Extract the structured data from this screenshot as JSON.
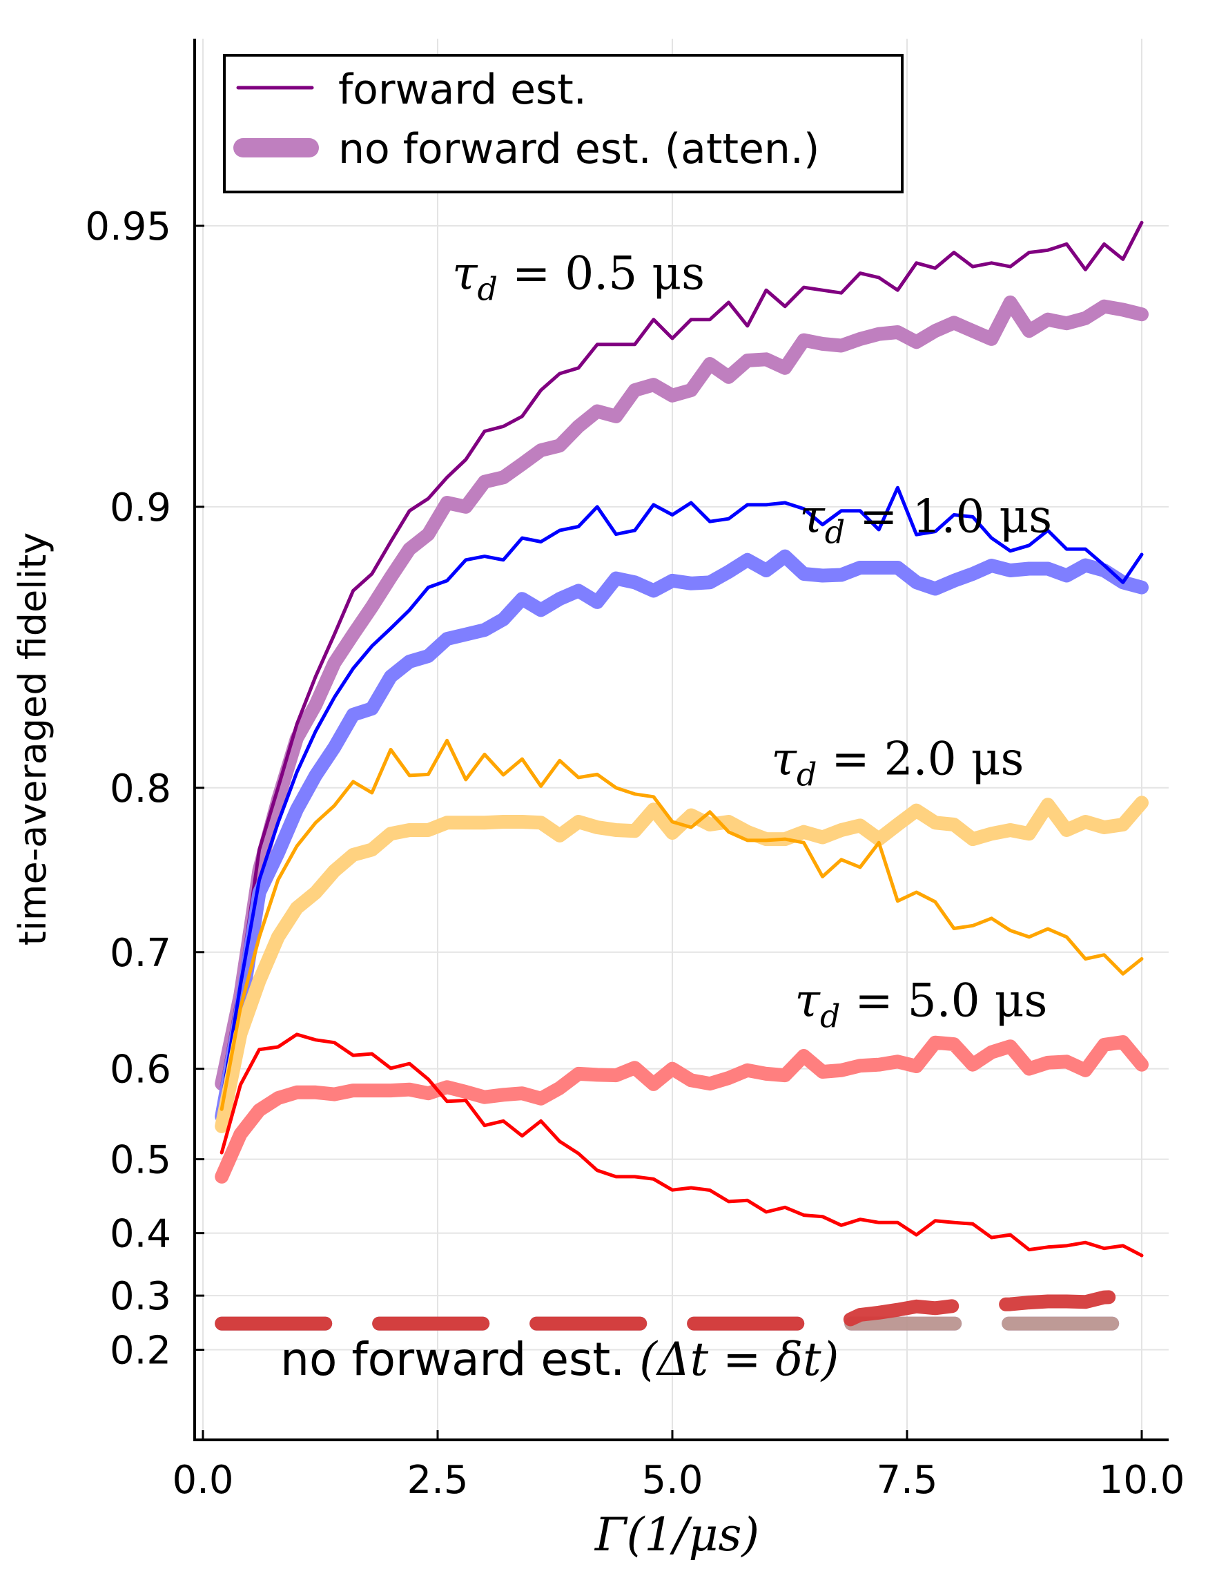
{
  "chart_data": {
    "type": "line",
    "title": "",
    "xlabel": "Γ(1/μs)",
    "ylabel": "time-averaged fidelity",
    "xlim": [
      -0.1,
      10.3
    ],
    "ylim": [
      0.0,
      0.9685
    ],
    "yscale": "log(1-F) (fidelity axis compressed toward 1)",
    "x_ticks": [
      0.0,
      2.5,
      5.0,
      7.5,
      10.0
    ],
    "x_tick_labels": [
      "0.0",
      "2.5",
      "5.0",
      "7.5",
      "10.0"
    ],
    "y_ticks": [
      0.2,
      0.3,
      0.4,
      0.5,
      0.6,
      0.7,
      0.8,
      0.9,
      0.95
    ],
    "y_tick_labels": [
      "0.2",
      "0.3",
      "0.4",
      "0.5",
      "0.6",
      "0.7",
      "0.8",
      "0.9",
      "0.95"
    ],
    "grid": true,
    "legend": {
      "placement": "top-left",
      "entries": [
        {
          "label": "forward est.",
          "color": "#800080",
          "style": "thin"
        },
        {
          "label": "no forward est. (atten.)",
          "color": "#bf7fbf",
          "style": "thick"
        }
      ]
    },
    "annotations": [
      {
        "text_main": "τ",
        "text_sub": "d",
        "text_rest": " = 0.5 μs",
        "x": 4.0,
        "y": 0.9437
      },
      {
        "text_main": "τ",
        "text_sub": "d",
        "text_rest": " = 1.0 μs",
        "x": 7.7,
        "y": 0.8975
      },
      {
        "text_main": "τ",
        "text_sub": "d",
        "text_rest": " = 2.0 μs",
        "x": 7.4,
        "y": 0.8135
      },
      {
        "text_main": "τ",
        "text_sub": "d",
        "text_rest": " = 5.0 μs",
        "x": 7.65,
        "y": 0.6615
      },
      {
        "text_main": "no forward est. ",
        "text_sub": "",
        "text_rest": "(Δt = δt)",
        "x": 3.8,
        "y": 0.18
      }
    ],
    "x": [
      0.2,
      0.4,
      0.6,
      0.8,
      1.0,
      1.2,
      1.4,
      1.6,
      1.8,
      2.0,
      2.2,
      2.4,
      2.6,
      2.8,
      3.0,
      3.2,
      3.4,
      3.6,
      3.8,
      4.0,
      4.2,
      4.4,
      4.6,
      4.8,
      5.0,
      5.2,
      5.4,
      5.6,
      5.8,
      6.0,
      6.2,
      6.4,
      6.6,
      6.8,
      7.0,
      7.2,
      7.4,
      7.6,
      7.8,
      8.0,
      8.2,
      8.4,
      8.6,
      8.8,
      9.0,
      9.2,
      9.4,
      9.6,
      9.8,
      10.0
    ],
    "series": [
      {
        "name": "no forward est. (Δt=δt), τd=0.5 μs",
        "color": "#8a5fc0",
        "style": "dashed",
        "tau": 0.5,
        "values": [
          0.25,
          0.25,
          0.25,
          0.25,
          0.25,
          0.25,
          0.25,
          0.25,
          0.25,
          0.25,
          0.25,
          0.25,
          0.25,
          0.25,
          0.25,
          0.25,
          0.25,
          0.25,
          0.25,
          0.25,
          0.25,
          0.25,
          0.25,
          0.25,
          0.25,
          0.25,
          0.25,
          0.25,
          0.25,
          0.25,
          0.25,
          0.25,
          0.25,
          0.25,
          0.25,
          0.25,
          0.25,
          0.25,
          0.25,
          0.25,
          0.25,
          0.25,
          0.25,
          0.25,
          0.25,
          0.25,
          0.25,
          0.25,
          0.25,
          0.25
        ]
      },
      {
        "name": "no forward est. (Δt=δt), τd=1.0 μs",
        "color": "#7f7fff",
        "style": "dashed",
        "tau": 1.0,
        "values": [
          0.25,
          0.25,
          0.25,
          0.25,
          0.25,
          0.25,
          0.25,
          0.25,
          0.25,
          0.25,
          0.25,
          0.25,
          0.25,
          0.25,
          0.25,
          0.25,
          0.25,
          0.25,
          0.25,
          0.25,
          0.25,
          0.25,
          0.25,
          0.25,
          0.25,
          0.25,
          0.25,
          0.25,
          0.25,
          0.25,
          0.25,
          0.25,
          0.25,
          0.25,
          0.25,
          0.25,
          0.25,
          0.25,
          0.25,
          0.25,
          0.25,
          0.25,
          0.25,
          0.25,
          0.25,
          0.25,
          0.25,
          0.25,
          0.25,
          0.25
        ]
      },
      {
        "name": "no forward est. (Δt=δt), τd=2.0 μs",
        "color": "#d9a55a",
        "style": "dashed",
        "tau": 2.0,
        "values": [
          0.25,
          0.25,
          0.25,
          0.25,
          0.25,
          0.25,
          0.25,
          0.25,
          0.25,
          0.25,
          0.25,
          0.25,
          0.25,
          0.25,
          0.25,
          0.25,
          0.25,
          0.25,
          0.25,
          0.25,
          0.25,
          0.25,
          0.25,
          0.25,
          0.25,
          0.25,
          0.25,
          0.25,
          0.25,
          0.25,
          0.25,
          0.25,
          0.25,
          0.25,
          0.25,
          0.25,
          0.25,
          0.25,
          0.25,
          0.25,
          0.25,
          0.25,
          0.25,
          0.25,
          0.25,
          0.25,
          0.25,
          0.25,
          0.25,
          0.25
        ]
      },
      {
        "name": "no forward est. (Δt=δt), τd=5.0 μs",
        "color": "#d43a3a",
        "style": "dashed",
        "tau": 5.0,
        "values": [
          0.25,
          0.25,
          0.25,
          0.25,
          0.25,
          0.25,
          0.25,
          0.25,
          0.25,
          0.25,
          0.25,
          0.25,
          0.25,
          0.25,
          0.25,
          0.25,
          0.25,
          0.25,
          0.25,
          0.25,
          0.25,
          0.25,
          0.25,
          0.25,
          0.25,
          0.25,
          0.25,
          0.25,
          0.25,
          0.25,
          0.25,
          0.25,
          0.25,
          0.25,
          0.266,
          0.27,
          0.275,
          0.281,
          0.278,
          0.282,
          0.283,
          0.284,
          0.285,
          0.288,
          0.29,
          0.29,
          0.289,
          0.297,
          0.298,
          0.3
        ]
      },
      {
        "name": "no forward est. (atten.), τd=0.5 μs",
        "color": "#bf7fbf",
        "style": "thick",
        "tau": 0.5,
        "values": [
          0.585,
          0.667,
          0.755,
          0.794,
          0.823,
          0.837,
          0.853,
          0.863,
          0.872,
          0.881,
          0.889,
          0.893,
          0.901,
          0.9,
          0.906,
          0.907,
          0.91,
          0.913,
          0.914,
          0.918,
          0.921,
          0.92,
          0.925,
          0.926,
          0.924,
          0.925,
          0.9297,
          0.9274,
          0.9303,
          0.9305,
          0.929,
          0.9337,
          0.9331,
          0.9328,
          0.9339,
          0.9347,
          0.935,
          0.9334,
          0.9352,
          0.9365,
          0.9352,
          0.9339,
          0.9396,
          0.9352,
          0.937,
          0.9364,
          0.9372,
          0.939,
          0.9385,
          0.9378
        ]
      },
      {
        "name": "forward est., τd=0.5 μs",
        "color": "#800080",
        "style": "thin",
        "tau": 0.5,
        "values": [
          0.582,
          0.678,
          0.767,
          0.8,
          0.829,
          0.848,
          0.863,
          0.877,
          0.882,
          0.891,
          0.899,
          0.902,
          0.907,
          0.911,
          0.917,
          0.918,
          0.92,
          0.925,
          0.928,
          0.929,
          0.933,
          0.933,
          0.933,
          0.937,
          0.934,
          0.937,
          0.937,
          0.9396,
          0.936,
          0.9414,
          0.939,
          0.9418,
          0.9414,
          0.941,
          0.9438,
          0.9432,
          0.9414,
          0.9452,
          0.9445,
          0.9466,
          0.9447,
          0.9452,
          0.9447,
          0.9466,
          0.9469,
          0.9477,
          0.9443,
          0.9477,
          0.9457,
          0.9504
        ]
      },
      {
        "name": "no forward est. (atten.), τd=1.0 μs",
        "color": "#7f7fff",
        "style": "thick",
        "tau": 1.0,
        "values": [
          0.55,
          0.652,
          0.741,
          0.765,
          0.789,
          0.806,
          0.819,
          0.833,
          0.8355,
          0.848,
          0.8535,
          0.8555,
          0.8615,
          0.863,
          0.8645,
          0.868,
          0.8745,
          0.871,
          0.8745,
          0.877,
          0.8735,
          0.8807,
          0.8795,
          0.877,
          0.88,
          0.8792,
          0.8795,
          0.8826,
          0.886,
          0.883,
          0.887,
          0.882,
          0.8815,
          0.8817,
          0.8838,
          0.8838,
          0.8838,
          0.8795,
          0.8776,
          0.88,
          0.882,
          0.8844,
          0.883,
          0.8835,
          0.8835,
          0.8815,
          0.8845,
          0.883,
          0.8795,
          0.878
        ]
      },
      {
        "name": "forward est., τd=1.0 μs",
        "color": "#0000ff",
        "style": "thin",
        "tau": 1.0,
        "values": [
          0.565,
          0.675,
          0.749,
          0.782,
          0.8075,
          0.826,
          0.84,
          0.851,
          0.859,
          0.865,
          0.871,
          0.878,
          0.88,
          0.886,
          0.887,
          0.886,
          0.892,
          0.891,
          0.894,
          0.895,
          0.9,
          0.893,
          0.894,
          0.9005,
          0.898,
          0.901,
          0.8963,
          0.897,
          0.9005,
          0.9005,
          0.901,
          0.8995,
          0.8955,
          0.899,
          0.899,
          0.8942,
          0.9046,
          0.8929,
          0.8937,
          0.898,
          0.8975,
          0.892,
          0.8885,
          0.89,
          0.894,
          0.889,
          0.889,
          0.8845,
          0.8795,
          0.8875
        ]
      },
      {
        "name": "no forward est. (atten.), τd=2.0 μs",
        "color": "#ffd280",
        "style": "thick",
        "tau": 2.0,
        "values": [
          0.539,
          0.633,
          0.678,
          0.711,
          0.731,
          0.741,
          0.7545,
          0.764,
          0.767,
          0.776,
          0.778,
          0.778,
          0.782,
          0.782,
          0.782,
          0.7825,
          0.7825,
          0.782,
          0.775,
          0.7825,
          0.7795,
          0.778,
          0.7775,
          0.789,
          0.7765,
          0.786,
          0.781,
          0.7825,
          0.777,
          0.773,
          0.773,
          0.777,
          0.774,
          0.778,
          0.7805,
          0.773,
          0.781,
          0.7885,
          0.782,
          0.781,
          0.773,
          0.776,
          0.778,
          0.776,
          0.7915,
          0.778,
          0.7825,
          0.7795,
          0.781,
          0.7925
        ]
      },
      {
        "name": "forward est., τd=2.0 μs",
        "color": "#ffa500",
        "style": "thin",
        "tau": 2.0,
        "values": [
          0.558,
          0.656,
          0.711,
          0.749,
          0.769,
          0.782,
          0.791,
          0.803,
          0.7975,
          0.818,
          0.806,
          0.8065,
          0.822,
          0.804,
          0.8158,
          0.8063,
          0.8137,
          0.8008,
          0.813,
          0.805,
          0.8065,
          0.8,
          0.7969,
          0.7955,
          0.7825,
          0.7795,
          0.7877,
          0.777,
          0.7723,
          0.7723,
          0.773,
          0.771,
          0.751,
          0.7612,
          0.7567,
          0.771,
          0.7355,
          0.7412,
          0.735,
          0.717,
          0.719,
          0.724,
          0.7156,
          0.711,
          0.7167,
          0.711,
          0.695,
          0.698,
          0.6835,
          0.695
        ]
      },
      {
        "name": "no forward est. (atten.), τd=5.0 μs",
        "color": "#ff7f7f",
        "style": "thick",
        "tau": 5.0,
        "values": [
          0.478,
          0.53,
          0.557,
          0.57,
          0.576,
          0.576,
          0.574,
          0.578,
          0.578,
          0.578,
          0.579,
          0.575,
          0.5815,
          0.5765,
          0.571,
          0.5735,
          0.575,
          0.5695,
          0.5805,
          0.595,
          0.594,
          0.5935,
          0.601,
          0.5845,
          0.6,
          0.5885,
          0.585,
          0.5908,
          0.5985,
          0.595,
          0.5935,
          0.6125,
          0.597,
          0.5985,
          0.603,
          0.604,
          0.607,
          0.6025,
          0.625,
          0.6235,
          0.604,
          0.616,
          0.6215,
          0.6,
          0.606,
          0.607,
          0.5985,
          0.623,
          0.6255,
          0.604
        ]
      },
      {
        "name": "forward est., τd=5.0 μs",
        "color": "#ff0000",
        "style": "thin",
        "tau": 5.0,
        "values": [
          0.508,
          0.584,
          0.6185,
          0.621,
          0.6325,
          0.6275,
          0.625,
          0.613,
          0.6145,
          0.6005,
          0.605,
          0.5895,
          0.5665,
          0.5675,
          0.54,
          0.545,
          0.528,
          0.545,
          0.5215,
          0.507,
          0.486,
          0.478,
          0.478,
          0.475,
          0.4605,
          0.4635,
          0.4603,
          0.445,
          0.4465,
          0.4305,
          0.437,
          0.426,
          0.424,
          0.4115,
          0.42,
          0.4155,
          0.4155,
          0.3975,
          0.418,
          0.4155,
          0.4135,
          0.3935,
          0.3975,
          0.375,
          0.379,
          0.381,
          0.386,
          0.377,
          0.381,
          0.366
        ]
      }
    ]
  }
}
